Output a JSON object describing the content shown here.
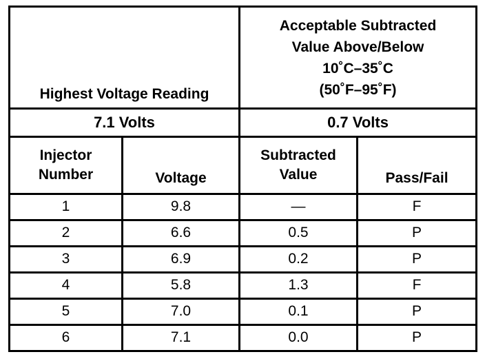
{
  "header": {
    "left_title": "Highest Voltage Reading",
    "right_title_lines": [
      "Acceptable Subtracted",
      "Value Above/Below",
      "10˚C–35˚C",
      "(50˚F–95˚F)"
    ]
  },
  "values": {
    "highest_voltage": "7.1 Volts",
    "acceptable_value": "0.7 Volts"
  },
  "columns": {
    "injector_number_lines": [
      "Injector",
      "Number"
    ],
    "voltage": "Voltage",
    "subtracted_value_lines": [
      "Subtracted",
      "Value"
    ],
    "pass_fail": "Pass/Fail"
  },
  "rows": [
    {
      "injector": "1",
      "voltage": "9.8",
      "subtracted": "—",
      "result": "F"
    },
    {
      "injector": "2",
      "voltage": "6.6",
      "subtracted": "0.5",
      "result": "P"
    },
    {
      "injector": "3",
      "voltage": "6.9",
      "subtracted": "0.2",
      "result": "P"
    },
    {
      "injector": "4",
      "voltage": "5.8",
      "subtracted": "1.3",
      "result": "F"
    },
    {
      "injector": "5",
      "voltage": "7.0",
      "subtracted": "0.1",
      "result": "P"
    },
    {
      "injector": "6",
      "voltage": "7.1",
      "subtracted": "0.0",
      "result": "P"
    }
  ]
}
